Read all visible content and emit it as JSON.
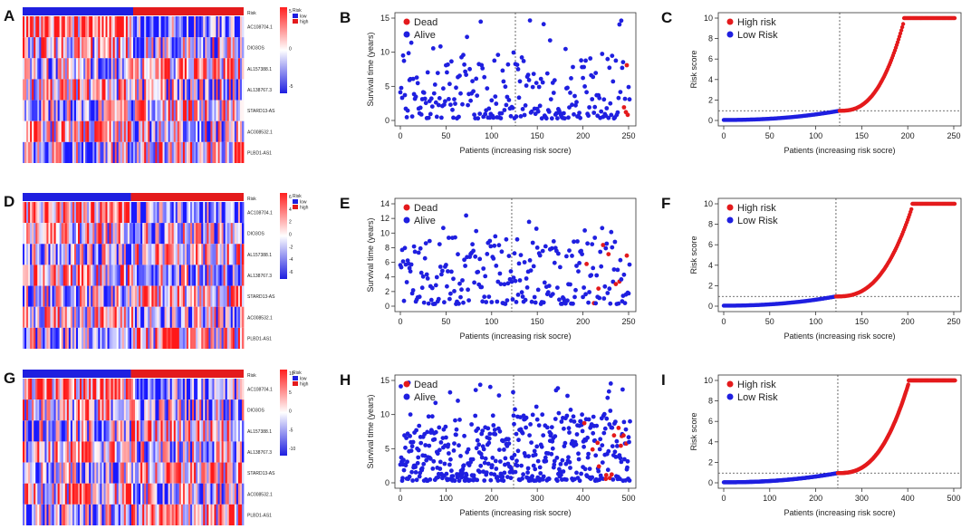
{
  "colors": {
    "dead": "#e41a1c",
    "alive": "#1f1fe0",
    "high": "#e41a1c",
    "low": "#1f1fe0",
    "heat_low": "#1f1fe0",
    "heat_high": "#ff1f1f"
  },
  "genes": [
    "AC108704.1",
    "DIO3OS",
    "AL157388.1",
    "AL138767.3",
    "STARD13-AS",
    "AC008532.1",
    "PLBD1-AS1"
  ],
  "rows": [
    {
      "heatmap": {
        "label": "A",
        "risk_label": "Risk",
        "legend_title": "Risk",
        "legend_low": "low",
        "legend_high": "high",
        "color_ticks": [
          "5",
          "0",
          "-5"
        ],
        "split_fraction": 0.5
      },
      "survival": {
        "label": "B",
        "ylabel": "Survival time (years)",
        "xlabel": "Patients (increasing risk socre)",
        "legend": [
          "Dead",
          "Alive"
        ]
      },
      "risk": {
        "label": "C",
        "ylabel": "Risk score",
        "xlabel": "Patients (increasing risk socre)",
        "legend": [
          "High risk",
          "Low Risk"
        ]
      }
    },
    {
      "heatmap": {
        "label": "D",
        "risk_label": "Risk",
        "legend_title": "Risk",
        "legend_low": "low",
        "legend_high": "high",
        "color_ticks": [
          "6",
          "4",
          "2",
          "0",
          "-2",
          "-4",
          "-6"
        ],
        "split_fraction": 0.49
      },
      "survival": {
        "label": "E",
        "ylabel": "Survival time (years)",
        "xlabel": "Patients (increasing risk socre)",
        "legend": [
          "Dead",
          "Alive"
        ]
      },
      "risk": {
        "label": "F",
        "ylabel": "Risk score",
        "xlabel": "Patients (increasing risk socre)",
        "legend": [
          "High risk",
          "Low Risk"
        ]
      }
    },
    {
      "heatmap": {
        "label": "G",
        "risk_label": "Risk",
        "legend_title": "Risk",
        "legend_low": "low",
        "legend_high": "high",
        "color_ticks": [
          "10",
          "5",
          "0",
          "-5",
          "-10"
        ],
        "split_fraction": 0.49
      },
      "survival": {
        "label": "H",
        "ylabel": "Survival time (years)",
        "xlabel": "Patients (increasing risk socre)",
        "legend": [
          "Dead",
          "Alive"
        ]
      },
      "risk": {
        "label": "I",
        "ylabel": "Risk score",
        "xlabel": "Patients (increasing risk socre)",
        "legend": [
          "High risk",
          "Low Risk"
        ]
      }
    }
  ],
  "chart_data": [
    {
      "type": "heatmap",
      "panel": "A",
      "rows": [
        "AC108704.1",
        "DIO3OS",
        "AL157388.1",
        "AL138767.3",
        "STARD13-AS",
        "AC008532.1",
        "PLBD1-AS1"
      ],
      "groups": [
        "low",
        "high"
      ],
      "color_range": [
        -5,
        5
      ]
    },
    {
      "type": "scatter",
      "panel": "B",
      "n": 252,
      "cutoff": 126,
      "xlim": [
        0,
        252
      ],
      "ylim": [
        0,
        15
      ],
      "xticks": [
        0,
        50,
        100,
        150,
        200,
        250
      ],
      "yticks": [
        0,
        5,
        10,
        15
      ],
      "dead_count": 6,
      "ylabel": "Survival time (years)",
      "xlabel": "Patients (increasing risk socre)"
    },
    {
      "type": "scatter",
      "panel": "C",
      "n": 252,
      "cutoff": 126,
      "xlim": [
        0,
        252
      ],
      "ylim": [
        0,
        10
      ],
      "xticks": [
        0,
        50,
        100,
        150,
        200,
        250
      ],
      "yticks": [
        0,
        2,
        4,
        6,
        8,
        10
      ],
      "threshold": 0.95,
      "cap": 10,
      "cap_start": 196,
      "ylabel": "Risk score",
      "xlabel": "Patients (increasing risk socre)"
    },
    {
      "type": "heatmap",
      "panel": "D",
      "rows": [
        "AC108704.1",
        "DIO3OS",
        "AL157388.1",
        "AL138767.3",
        "STARD13-AS",
        "AC008532.1",
        "PLBD1-AS1"
      ],
      "groups": [
        "low",
        "high"
      ],
      "color_range": [
        -6,
        6
      ]
    },
    {
      "type": "scatter",
      "panel": "E",
      "n": 252,
      "cutoff": 122,
      "xlim": [
        0,
        252
      ],
      "ylim": [
        0,
        14
      ],
      "xticks": [
        0,
        50,
        100,
        150,
        200,
        250
      ],
      "yticks": [
        0,
        2,
        4,
        6,
        8,
        10,
        12,
        14
      ],
      "dead_count": 8,
      "ylabel": "Survival time (years)",
      "xlabel": "Patients (increasing risk socre)"
    },
    {
      "type": "scatter",
      "panel": "F",
      "n": 252,
      "cutoff": 122,
      "xlim": [
        0,
        252
      ],
      "ylim": [
        0,
        10
      ],
      "xticks": [
        0,
        50,
        100,
        150,
        200,
        250
      ],
      "yticks": [
        0,
        2,
        4,
        6,
        8,
        10
      ],
      "threshold": 0.95,
      "cap": 10,
      "cap_start": 205,
      "ylabel": "Risk score",
      "xlabel": "Patients (increasing risk socre)"
    },
    {
      "type": "heatmap",
      "panel": "G",
      "rows": [
        "AC108704.1",
        "DIO3OS",
        "AL157388.1",
        "AL138767.3",
        "STARD13-AS",
        "AC008532.1",
        "PLBD1-AS1"
      ],
      "groups": [
        "low",
        "high"
      ],
      "color_range": [
        -10,
        10
      ]
    },
    {
      "type": "scatter",
      "panel": "H",
      "n": 504,
      "cutoff": 248,
      "xlim": [
        0,
        504
      ],
      "ylim": [
        0,
        15
      ],
      "xticks": [
        0,
        100,
        200,
        300,
        400,
        500
      ],
      "yticks": [
        0,
        5,
        10,
        15
      ],
      "dead_count": 14,
      "ylabel": "Survival time (years)",
      "xlabel": "Patients (increasing risk socre)"
    },
    {
      "type": "scatter",
      "panel": "I",
      "n": 504,
      "cutoff": 248,
      "xlim": [
        0,
        504
      ],
      "ylim": [
        0,
        10
      ],
      "xticks": [
        0,
        100,
        200,
        300,
        400,
        500
      ],
      "yticks": [
        0,
        2,
        4,
        6,
        8,
        10
      ],
      "threshold": 0.95,
      "cap": 10,
      "cap_start": 402,
      "ylabel": "Risk score",
      "xlabel": "Patients (increasing risk socre)"
    }
  ]
}
